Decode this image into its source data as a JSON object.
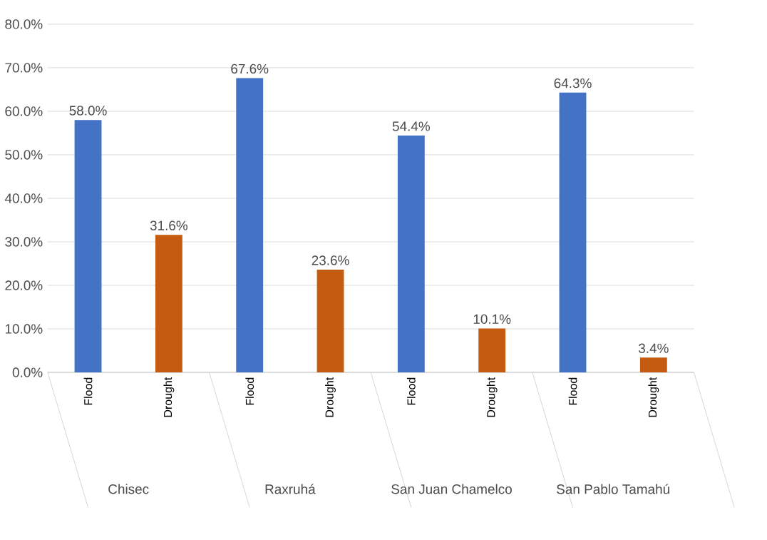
{
  "chart_data": {
    "type": "bar",
    "categories": [
      "Flood",
      "Drought",
      "Flood",
      "Drought",
      "Flood",
      "Drought",
      "Flood",
      "Drought"
    ],
    "values": [
      58.0,
      31.6,
      67.6,
      23.6,
      54.4,
      10.1,
      64.3,
      3.4
    ],
    "colors": [
      "#4472c4",
      "#c55a11",
      "#4472c4",
      "#c55a11",
      "#4472c4",
      "#c55a11",
      "#4472c4",
      "#c55a11"
    ],
    "value_labels": [
      "58.0%",
      "31.6%",
      "67.6%",
      "23.6%",
      "54.4%",
      "10.1%",
      "64.3%",
      "3.4%"
    ],
    "annotations": [
      "Chisec",
      "Raxruhá",
      "San Juan Chamelco",
      "San Pablo Tamahú"
    ],
    "ylim": [
      0,
      80
    ],
    "yticks": [
      {
        "value": 0,
        "label": "0.0%"
      },
      {
        "value": 10,
        "label": "10.0%"
      },
      {
        "value": 20,
        "label": "20.0%"
      },
      {
        "value": 30,
        "label": "30.0%"
      },
      {
        "value": 40,
        "label": "40.0%"
      },
      {
        "value": 50,
        "label": "50.0%"
      },
      {
        "value": 60,
        "label": "60.0%"
      },
      {
        "value": 70,
        "label": "70.0%"
      },
      {
        "value": 80,
        "label": "80.0%"
      }
    ],
    "grid": "y"
  }
}
